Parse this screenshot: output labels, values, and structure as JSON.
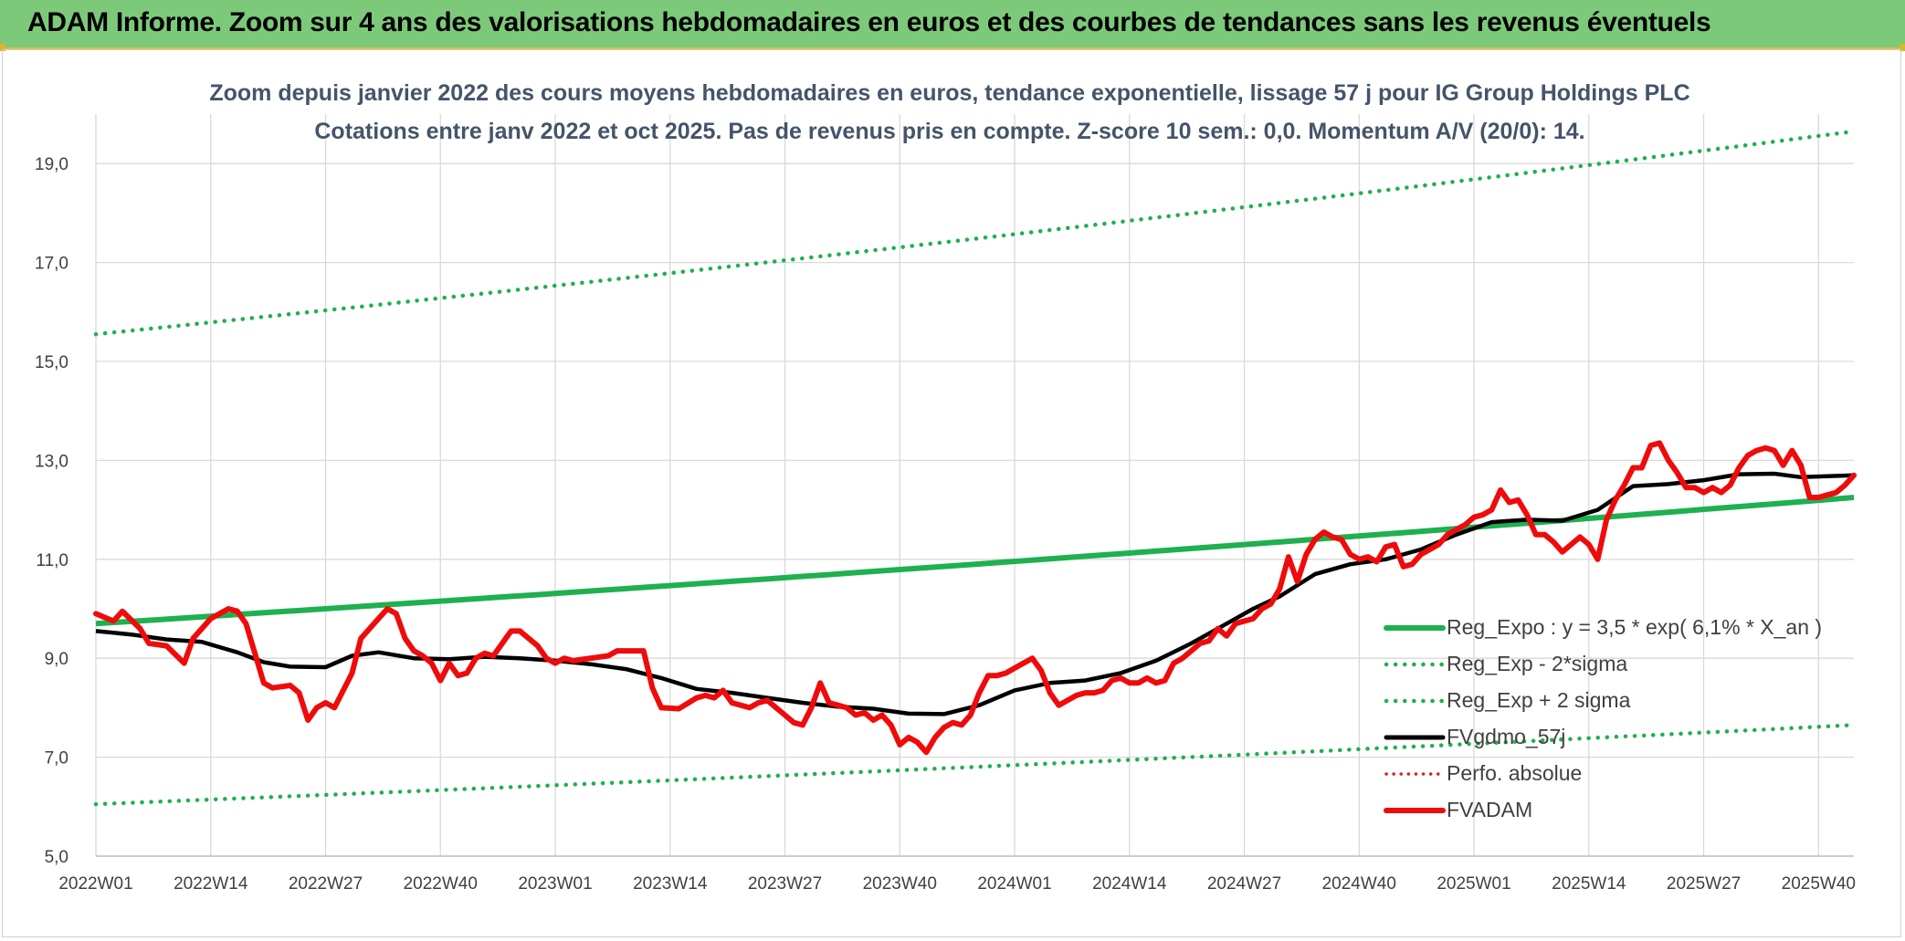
{
  "banner": {
    "title": "ADAM Informe. Zoom sur 4 ans des valorisations hebdomadaires en euros et des courbes de tendances sans les revenus éventuels"
  },
  "chart_data": {
    "type": "line",
    "title": "Zoom depuis janvier 2022 des cours moyens hebdomadaires en euros, tendance exponentielle, lissage 57 j pour IG Group Holdings PLC",
    "subtitle": "Cotations entre janv 2022 et oct 2025. Pas de revenus pris en compte. Z-score 10 sem.: 0,0. Momentum A/V (20/0): 14.",
    "xlabel": "",
    "ylabel": "",
    "x_tick_labels": [
      "2022W01",
      "2022W14",
      "2022W27",
      "2022W40",
      "2023W01",
      "2023W14",
      "2023W27",
      "2023W40",
      "2024W01",
      "2024W14",
      "2024W27",
      "2024W40",
      "2025W01",
      "2025W14",
      "2025W27",
      "2025W40"
    ],
    "x_tick_weeks": [
      0,
      13,
      26,
      39,
      52,
      65,
      78,
      91,
      104,
      117,
      130,
      143,
      156,
      169,
      182,
      195
    ],
    "x_range_weeks": [
      0,
      199
    ],
    "y_tick_labels": [
      "5,0",
      "7,0",
      "9,0",
      "11,0",
      "13,0",
      "15,0",
      "17,0",
      "19,0"
    ],
    "ylim": [
      5,
      20
    ],
    "grid": true,
    "legend_position": "lower-right",
    "colors": {
      "reg": "#1fb04f",
      "sigma": "#1fb04f",
      "smooth": "#000000",
      "perfo": "#e0201b",
      "fvadam": "#ef0b0b"
    },
    "series": [
      {
        "name": "Reg_Expo : y = 3,5 * exp( 6,1% *  X_an )",
        "style": "solid",
        "start": 9.7,
        "end": 12.25
      },
      {
        "name": "Reg_Exp - 2*sigma",
        "style": "dotted",
        "start": 6.05,
        "end": 7.65
      },
      {
        "name": "Reg_Exp + 2 sigma",
        "style": "dotted",
        "start": 15.55,
        "end": 19.65
      },
      {
        "name": "FVgdmo_57j",
        "style": "solid",
        "points": [
          [
            0,
            9.55
          ],
          [
            4,
            9.48
          ],
          [
            8,
            9.38
          ],
          [
            12,
            9.33
          ],
          [
            16,
            9.12
          ],
          [
            19,
            8.92
          ],
          [
            22,
            8.83
          ],
          [
            26,
            8.82
          ],
          [
            29,
            9.05
          ],
          [
            32,
            9.12
          ],
          [
            36,
            9.0
          ],
          [
            40,
            8.98
          ],
          [
            44,
            9.03
          ],
          [
            48,
            9.0
          ],
          [
            52,
            8.95
          ],
          [
            56,
            8.88
          ],
          [
            60,
            8.78
          ],
          [
            64,
            8.6
          ],
          [
            68,
            8.38
          ],
          [
            72,
            8.3
          ],
          [
            76,
            8.2
          ],
          [
            80,
            8.1
          ],
          [
            84,
            8.02
          ],
          [
            88,
            7.98
          ],
          [
            92,
            7.88
          ],
          [
            96,
            7.87
          ],
          [
            100,
            8.05
          ],
          [
            104,
            8.35
          ],
          [
            108,
            8.5
          ],
          [
            112,
            8.55
          ],
          [
            116,
            8.7
          ],
          [
            120,
            8.95
          ],
          [
            124,
            9.3
          ],
          [
            128,
            9.7
          ],
          [
            131,
            10.0
          ],
          [
            134,
            10.25
          ],
          [
            138,
            10.7
          ],
          [
            142,
            10.9
          ],
          [
            146,
            11.0
          ],
          [
            150,
            11.2
          ],
          [
            154,
            11.5
          ],
          [
            158,
            11.75
          ],
          [
            162,
            11.8
          ],
          [
            166,
            11.78
          ],
          [
            170,
            12.0
          ],
          [
            174,
            12.48
          ],
          [
            178,
            12.52
          ],
          [
            182,
            12.6
          ],
          [
            186,
            12.72
          ],
          [
            190,
            12.73
          ],
          [
            193,
            12.66
          ],
          [
            199,
            12.7
          ]
        ]
      },
      {
        "name": "Perfo. absolue",
        "style": "dotted",
        "points": []
      },
      {
        "name": "FVADAM",
        "style": "solid",
        "points": [
          [
            0,
            9.9
          ],
          [
            2,
            9.75
          ],
          [
            3,
            9.95
          ],
          [
            5,
            9.6
          ],
          [
            6,
            9.3
          ],
          [
            8,
            9.25
          ],
          [
            10,
            8.9
          ],
          [
            11,
            9.4
          ],
          [
            13,
            9.8
          ],
          [
            15,
            10.0
          ],
          [
            16,
            9.95
          ],
          [
            17,
            9.7
          ],
          [
            19,
            8.5
          ],
          [
            20,
            8.4
          ],
          [
            22,
            8.45
          ],
          [
            23,
            8.3
          ],
          [
            24,
            7.75
          ],
          [
            25,
            8.0
          ],
          [
            26,
            8.1
          ],
          [
            27,
            8.0
          ],
          [
            29,
            8.7
          ],
          [
            30,
            9.4
          ],
          [
            32,
            9.8
          ],
          [
            33,
            10.0
          ],
          [
            34,
            9.9
          ],
          [
            35,
            9.4
          ],
          [
            36,
            9.15
          ],
          [
            37,
            9.05
          ],
          [
            38,
            8.9
          ],
          [
            39,
            8.55
          ],
          [
            40,
            8.9
          ],
          [
            41,
            8.65
          ],
          [
            42,
            8.7
          ],
          [
            43,
            9.0
          ],
          [
            44,
            9.1
          ],
          [
            45,
            9.05
          ],
          [
            46,
            9.3
          ],
          [
            47,
            9.55
          ],
          [
            48,
            9.55
          ],
          [
            50,
            9.25
          ],
          [
            51,
            9.0
          ],
          [
            52,
            8.9
          ],
          [
            53,
            9.0
          ],
          [
            54,
            8.95
          ],
          [
            56,
            9.0
          ],
          [
            58,
            9.05
          ],
          [
            59,
            9.15
          ],
          [
            62,
            9.15
          ],
          [
            63,
            8.4
          ],
          [
            64,
            8.0
          ],
          [
            66,
            7.98
          ],
          [
            68,
            8.2
          ],
          [
            69,
            8.25
          ],
          [
            70,
            8.2
          ],
          [
            71,
            8.35
          ],
          [
            72,
            8.1
          ],
          [
            74,
            8.0
          ],
          [
            75,
            8.1
          ],
          [
            76,
            8.15
          ],
          [
            78,
            7.85
          ],
          [
            79,
            7.7
          ],
          [
            80,
            7.65
          ],
          [
            81,
            8.0
          ],
          [
            82,
            8.5
          ],
          [
            83,
            8.1
          ],
          [
            84,
            8.05
          ],
          [
            85,
            8.0
          ],
          [
            86,
            7.85
          ],
          [
            87,
            7.9
          ],
          [
            88,
            7.75
          ],
          [
            89,
            7.85
          ],
          [
            90,
            7.65
          ],
          [
            91,
            7.25
          ],
          [
            92,
            7.4
          ],
          [
            93,
            7.3
          ],
          [
            94,
            7.1
          ],
          [
            95,
            7.4
          ],
          [
            96,
            7.6
          ],
          [
            97,
            7.7
          ],
          [
            98,
            7.65
          ],
          [
            99,
            7.85
          ],
          [
            100,
            8.3
          ],
          [
            101,
            8.65
          ],
          [
            102,
            8.65
          ],
          [
            103,
            8.7
          ],
          [
            104,
            8.8
          ],
          [
            105,
            8.9
          ],
          [
            106,
            9.0
          ],
          [
            107,
            8.75
          ],
          [
            108,
            8.3
          ],
          [
            109,
            8.05
          ],
          [
            110,
            8.15
          ],
          [
            111,
            8.25
          ],
          [
            112,
            8.3
          ],
          [
            113,
            8.3
          ],
          [
            114,
            8.35
          ],
          [
            115,
            8.55
          ],
          [
            116,
            8.6
          ],
          [
            117,
            8.5
          ],
          [
            118,
            8.5
          ],
          [
            119,
            8.6
          ],
          [
            120,
            8.5
          ],
          [
            121,
            8.55
          ],
          [
            122,
            8.9
          ],
          [
            123,
            9.0
          ],
          [
            124,
            9.15
          ],
          [
            125,
            9.3
          ],
          [
            126,
            9.35
          ],
          [
            127,
            9.6
          ],
          [
            128,
            9.45
          ],
          [
            129,
            9.7
          ],
          [
            130,
            9.75
          ],
          [
            131,
            9.8
          ],
          [
            132,
            10.0
          ],
          [
            133,
            10.1
          ],
          [
            134,
            10.4
          ],
          [
            135,
            11.05
          ],
          [
            136,
            10.55
          ],
          [
            137,
            11.1
          ],
          [
            138,
            11.4
          ],
          [
            139,
            11.55
          ],
          [
            140,
            11.45
          ],
          [
            141,
            11.4
          ],
          [
            142,
            11.1
          ],
          [
            143,
            11.0
          ],
          [
            144,
            11.05
          ],
          [
            145,
            10.95
          ],
          [
            146,
            11.25
          ],
          [
            147,
            11.3
          ],
          [
            148,
            10.85
          ],
          [
            149,
            10.9
          ],
          [
            150,
            11.1
          ],
          [
            151,
            11.2
          ],
          [
            152,
            11.3
          ],
          [
            153,
            11.5
          ],
          [
            154,
            11.6
          ],
          [
            155,
            11.7
          ],
          [
            156,
            11.85
          ],
          [
            157,
            11.9
          ],
          [
            158,
            12.0
          ],
          [
            159,
            12.4
          ],
          [
            160,
            12.15
          ],
          [
            161,
            12.2
          ],
          [
            162,
            11.9
          ],
          [
            163,
            11.5
          ],
          [
            164,
            11.5
          ],
          [
            165,
            11.35
          ],
          [
            166,
            11.15
          ],
          [
            167,
            11.3
          ],
          [
            168,
            11.45
          ],
          [
            169,
            11.3
          ],
          [
            170,
            11.0
          ],
          [
            171,
            11.8
          ],
          [
            172,
            12.2
          ],
          [
            173,
            12.5
          ],
          [
            174,
            12.85
          ],
          [
            175,
            12.85
          ],
          [
            176,
            13.3
          ],
          [
            177,
            13.35
          ],
          [
            178,
            13.0
          ],
          [
            179,
            12.75
          ],
          [
            180,
            12.45
          ],
          [
            181,
            12.45
          ],
          [
            182,
            12.35
          ],
          [
            183,
            12.45
          ],
          [
            184,
            12.35
          ],
          [
            185,
            12.5
          ],
          [
            186,
            12.85
          ],
          [
            187,
            13.1
          ],
          [
            188,
            13.2
          ],
          [
            189,
            13.25
          ],
          [
            190,
            13.2
          ],
          [
            191,
            12.9
          ],
          [
            192,
            13.2
          ],
          [
            193,
            12.9
          ],
          [
            194,
            12.25
          ],
          [
            195,
            12.25
          ],
          [
            196,
            12.3
          ],
          [
            197,
            12.35
          ],
          [
            198,
            12.5
          ],
          [
            199,
            12.7
          ]
        ]
      }
    ]
  }
}
